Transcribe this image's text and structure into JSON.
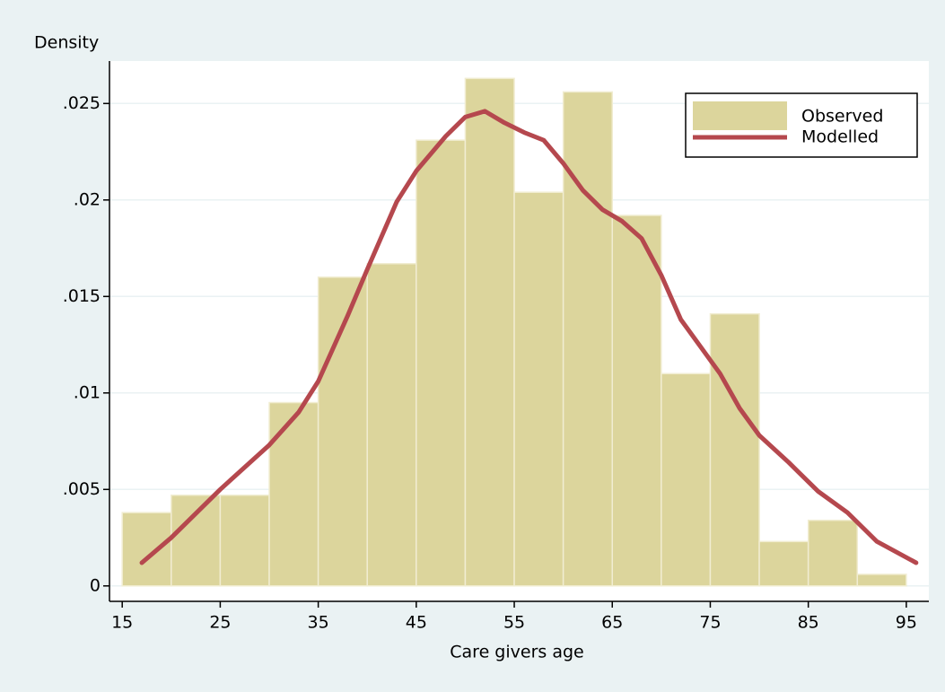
{
  "chart_data": {
    "type": "histogram",
    "xlabel": "Care givers age",
    "ylabel": "Density",
    "name": "Observed",
    "color": "#dcd59c",
    "bins": [
      15,
      20,
      25,
      30,
      35,
      40,
      45,
      50,
      55,
      60,
      65,
      70,
      75,
      80,
      85,
      90,
      95
    ],
    "values": [
      0.0038,
      0.0047,
      0.0047,
      0.0095,
      0.016,
      0.0167,
      0.0231,
      0.0263,
      0.0204,
      0.0256,
      0.0192,
      0.011,
      0.0141,
      0.0023,
      0.0034,
      0.0006
    ],
    "lines": [
      {
        "name": "Modelled",
        "color": "#b5484e",
        "x": [
          17,
          20,
          25,
          30,
          33,
          35,
          38,
          40,
          43,
          45,
          48,
          50,
          52,
          54,
          56,
          58,
          60,
          62,
          64,
          66,
          68,
          70,
          72,
          74,
          76,
          78,
          80,
          83,
          86,
          89,
          92,
          96
        ],
        "values": [
          0.0012,
          0.0025,
          0.005,
          0.0073,
          0.009,
          0.0106,
          0.014,
          0.0164,
          0.0199,
          0.0215,
          0.0233,
          0.0243,
          0.0246,
          0.024,
          0.0235,
          0.0231,
          0.0219,
          0.0205,
          0.0195,
          0.0189,
          0.018,
          0.0161,
          0.0138,
          0.0124,
          0.011,
          0.0092,
          0.0078,
          0.0064,
          0.0049,
          0.0038,
          0.0023,
          0.0012
        ]
      }
    ],
    "xlim": [
      13.7,
      97.3
    ],
    "ylim": [
      -0.0008,
      0.0272
    ],
    "xticks": [
      15,
      25,
      35,
      45,
      55,
      65,
      75,
      85,
      95
    ],
    "yticks": [
      0,
      {
        "value": 0.005,
        "label": ".005"
      },
      {
        "value": 0.01,
        "label": ".01"
      },
      {
        "value": 0.015,
        "label": ".015"
      },
      {
        "value": 0.02,
        "label": ".02"
      },
      {
        "value": 0.025,
        "label": ".025"
      }
    ],
    "grid": true,
    "legend": "top-right"
  }
}
